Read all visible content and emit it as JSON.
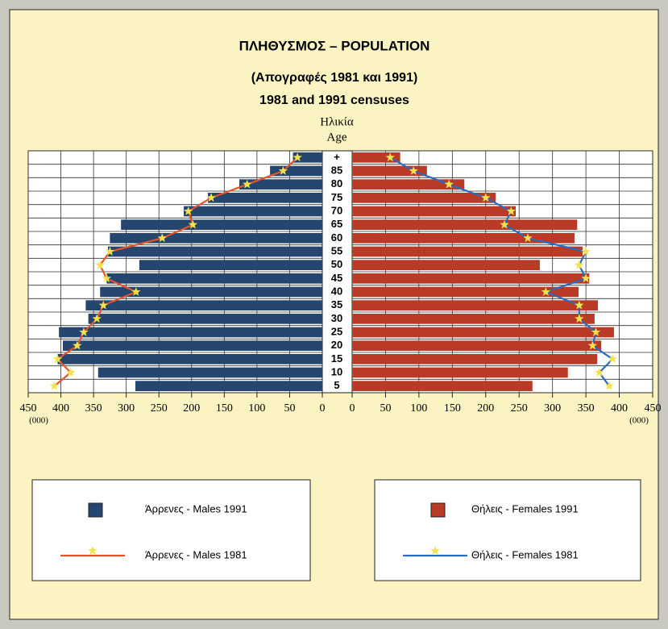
{
  "chart_data": {
    "type": "pyramid",
    "title": "ΠΛΗΘΥΣΜΟΣ – POPULATION",
    "subtitle": "(Απογραφές 1981 και 1991)",
    "subtitle2": "1981 and 1991 censuses",
    "category_label": "Ηλικία",
    "category_label2": "Age",
    "unit_label": "(000)",
    "categories": [
      "+",
      "85",
      "80",
      "75",
      "70",
      "65",
      "60",
      "55",
      "50",
      "45",
      "40",
      "35",
      "30",
      "25",
      "20",
      "15",
      "10",
      "5"
    ],
    "xlim_left": [
      450,
      0
    ],
    "xticks_left": [
      450,
      400,
      350,
      300,
      250,
      200,
      150,
      100,
      50,
      0
    ],
    "xlim_right": [
      0,
      450
    ],
    "xticks_right": [
      0,
      50,
      100,
      150,
      200,
      250,
      300,
      350,
      400,
      450
    ],
    "grid": true,
    "series": [
      {
        "name": "Άρρενες - Males 1991",
        "kind": "bar",
        "side": "left",
        "color": "#24466f",
        "values": [
          45,
          80,
          127,
          175,
          212,
          308,
          325,
          328,
          280,
          330,
          340,
          362,
          358,
          403,
          397,
          405,
          343,
          286
        ]
      },
      {
        "name": "Άρρενες - Males 1981",
        "kind": "line",
        "side": "left",
        "color": "#e4532c",
        "marker_color": "#f2e24c",
        "values": [
          38,
          60,
          115,
          170,
          205,
          198,
          245,
          325,
          340,
          330,
          285,
          335,
          345,
          365,
          375,
          405,
          385,
          410
        ]
      },
      {
        "name": "Θήλεις - Females 1991",
        "kind": "bar",
        "side": "right",
        "color": "#b93a26",
        "values": [
          72,
          112,
          168,
          215,
          245,
          337,
          333,
          345,
          281,
          355,
          339,
          368,
          363,
          392,
          373,
          367,
          323,
          270
        ]
      },
      {
        "name": "Θήλεις - Females 1981",
        "kind": "line",
        "side": "right",
        "color": "#2a6cc0",
        "marker_color": "#f2e24c",
        "values": [
          57,
          92,
          145,
          200,
          238,
          228,
          263,
          350,
          340,
          350,
          290,
          340,
          340,
          365,
          360,
          390,
          370,
          385
        ]
      }
    ]
  }
}
